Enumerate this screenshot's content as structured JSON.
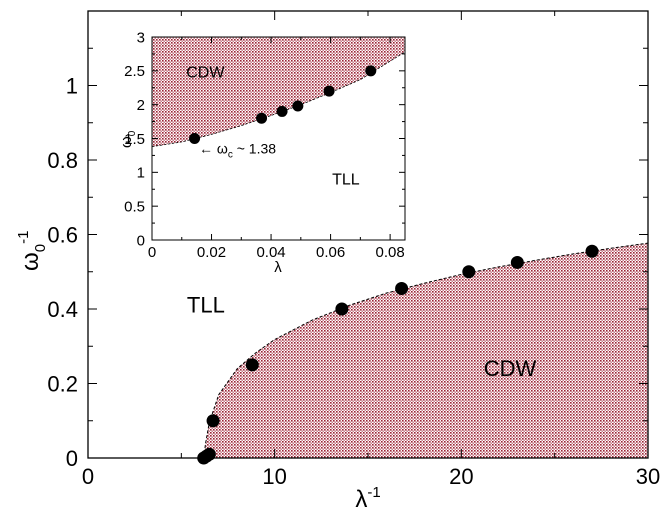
{
  "chart_data": [
    {
      "type": "scatter",
      "xlabel": "λ",
      "xlabel_sup": "-1",
      "ylabel": "ω",
      "ylabel_sub": "0",
      "ylabel_sup": "-1",
      "xlim": [
        0,
        30
      ],
      "ylim": [
        0,
        1.2
      ],
      "xticks": [
        0,
        10,
        20,
        30
      ],
      "yticks": [
        0,
        0.2,
        0.4,
        0.6,
        0.8,
        1
      ],
      "xtick_labels": [
        "0",
        "10",
        "20",
        "30"
      ],
      "ytick_labels": [
        "0",
        "0.2",
        "0.4",
        "0.6",
        "0.8",
        "1"
      ],
      "grid": false,
      "series": [
        {
          "type": "scatter",
          "x": [
            6.2,
            6.35,
            6.5,
            6.7,
            8.8,
            13.6,
            16.8,
            20.4,
            23.0,
            27.0
          ],
          "y": [
            0.0,
            0.005,
            0.01,
            0.1,
            0.25,
            0.4,
            0.455,
            0.5,
            0.525,
            0.555
          ]
        }
      ],
      "phase_boundary": {
        "x": [
          6.2,
          6.3,
          6.5,
          7.0,
          8.0,
          9.0,
          10.0,
          12.0,
          14.0,
          16.0,
          18.0,
          20.0,
          22.0,
          24.0,
          26.0,
          28.0,
          30.0
        ],
        "y": [
          0.0,
          0.04,
          0.095,
          0.17,
          0.24,
          0.283,
          0.318,
          0.37,
          0.41,
          0.443,
          0.469,
          0.493,
          0.513,
          0.531,
          0.548,
          0.563,
          0.577
        ],
        "fill_color": "#9b2335"
      },
      "annotations": [
        {
          "text": "TLL",
          "x": 5.3,
          "y": 0.39,
          "color": "#1414b4"
        },
        {
          "text": "CDW",
          "x": 21.2,
          "y": 0.22,
          "color": "#000000"
        }
      ]
    },
    {
      "type": "scatter",
      "inset": true,
      "xlabel": "λ",
      "ylabel": "ω",
      "ylabel_sub": "0",
      "xlim": [
        0,
        0.085
      ],
      "ylim": [
        0,
        3
      ],
      "xticks": [
        0,
        0.02,
        0.04,
        0.06,
        0.08
      ],
      "yticks": [
        0,
        0.5,
        1,
        1.5,
        2,
        2.5,
        3
      ],
      "xtick_labels": [
        "0",
        "0.02",
        "0.04",
        "0.06",
        "0.08"
      ],
      "ytick_labels": [
        "0",
        "0.5",
        "1",
        "1.5",
        "2",
        "2.5",
        "3"
      ],
      "grid": false,
      "series": [
        {
          "type": "scatter",
          "x": [
            0.0143,
            0.0368,
            0.0437,
            0.049,
            0.0595,
            0.0735
          ],
          "y": [
            1.5,
            1.8,
            1.9,
            1.98,
            2.2,
            2.5
          ]
        }
      ],
      "phase_boundary": {
        "x": [
          0,
          0.01,
          0.02,
          0.03,
          0.04,
          0.05,
          0.06,
          0.07,
          0.085
        ],
        "y": [
          1.38,
          1.45,
          1.56,
          1.69,
          1.84,
          2.0,
          2.18,
          2.37,
          2.78
        ],
        "fill_color": "#9b2335"
      },
      "annotations": [
        {
          "text": "CDW",
          "x": 0.0115,
          "y": 2.4,
          "color": "#000000"
        },
        {
          "text": "TLL",
          "x": 0.0605,
          "y": 0.82,
          "color": "#1414b4"
        }
      ],
      "arrow_label": {
        "prefix": "← ω",
        "sub": "c",
        "suffix": " ~ 1.38",
        "x": 0.0158,
        "y": 1.28
      }
    }
  ]
}
